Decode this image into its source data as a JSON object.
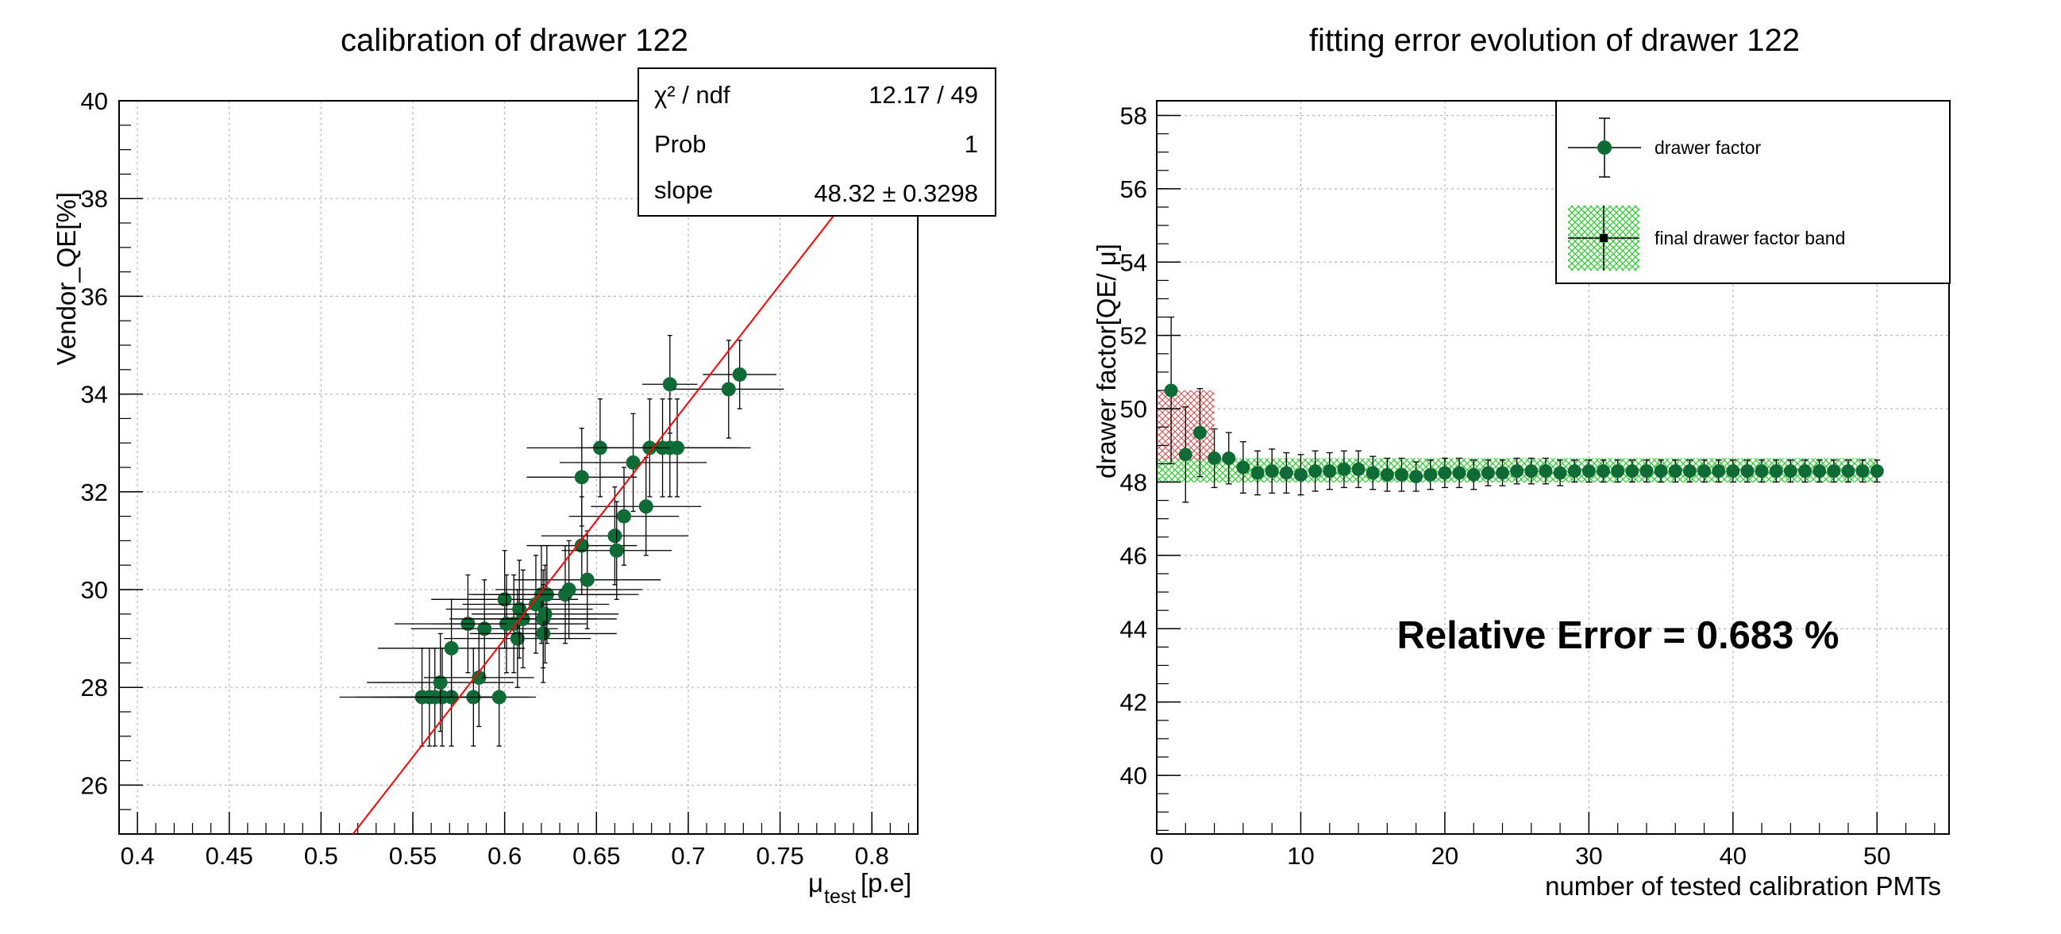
{
  "left": {
    "title": "calibration of drawer 122",
    "ylabel": "Vendor_QE[%]",
    "xlabel_mu": "μ",
    "xlabel_sub": "test",
    "xlabel_unit": "[p.e]",
    "stats": {
      "chi2_label": "χ² / ndf",
      "chi2_value": "12.17 / 49",
      "prob_label": "Prob",
      "prob_value": "1",
      "slope_label": "slope",
      "slope_value": "48.32 ± 0.3298"
    }
  },
  "right": {
    "title": "fitting error evolution of drawer 122",
    "ylabel": "drawer factor[QE/ μ]",
    "xlabel": "number of tested calibration PMTs",
    "legend": [
      "drawer factor",
      "final drawer factor band"
    ],
    "annotation": "Relative Error = 0.683 %"
  },
  "colors": {
    "marker": "#0f6b35",
    "fit_line": "#ff0000",
    "band_final": "#33cc33",
    "band_early": "#cc3333"
  },
  "chart_data": [
    {
      "type": "scatter",
      "title": "calibration of drawer 122",
      "xlabel": "μtest[p.e]",
      "ylabel": "Vendor_QE[%]",
      "xlim": [
        0.39,
        0.825
      ],
      "ylim": [
        25,
        40
      ],
      "xticks": [
        "0.4",
        "0.45",
        "0.5",
        "0.55",
        "0.6",
        "0.65",
        "0.7",
        "0.75",
        "0.8"
      ],
      "yticks": [
        "26",
        "28",
        "30",
        "32",
        "34",
        "36",
        "38",
        "40"
      ],
      "grid": true,
      "fit": {
        "function": "linear through origin",
        "slope": 48.32,
        "slope_error": 0.3298,
        "chi2": 12.17,
        "ndf": 49,
        "prob": 1
      },
      "points": [
        {
          "x": 0.555,
          "y": 27.8,
          "xerr": 0.045,
          "yerr": 1.0
        },
        {
          "x": 0.559,
          "y": 27.8,
          "xerr": 0.04,
          "yerr": 1.0
        },
        {
          "x": 0.562,
          "y": 27.8,
          "xerr": 0.035,
          "yerr": 1.0
        },
        {
          "x": 0.566,
          "y": 27.8,
          "xerr": 0.03,
          "yerr": 1.0
        },
        {
          "x": 0.571,
          "y": 27.8,
          "xerr": 0.03,
          "yerr": 1.0
        },
        {
          "x": 0.565,
          "y": 28.1,
          "xerr": 0.04,
          "yerr": 1.0
        },
        {
          "x": 0.571,
          "y": 28.8,
          "xerr": 0.04,
          "yerr": 1.0
        },
        {
          "x": 0.583,
          "y": 27.8,
          "xerr": 0.03,
          "yerr": 1.0
        },
        {
          "x": 0.586,
          "y": 28.2,
          "xerr": 0.03,
          "yerr": 1.0
        },
        {
          "x": 0.597,
          "y": 27.8,
          "xerr": 0.02,
          "yerr": 1.0
        },
        {
          "x": 0.58,
          "y": 29.3,
          "xerr": 0.04,
          "yerr": 1.0
        },
        {
          "x": 0.589,
          "y": 29.2,
          "xerr": 0.04,
          "yerr": 1.0
        },
        {
          "x": 0.6,
          "y": 29.8,
          "xerr": 0.04,
          "yerr": 1.0
        },
        {
          "x": 0.601,
          "y": 29.3,
          "xerr": 0.04,
          "yerr": 1.0
        },
        {
          "x": 0.605,
          "y": 29.3,
          "xerr": 0.04,
          "yerr": 1.0
        },
        {
          "x": 0.607,
          "y": 29.0,
          "xerr": 0.04,
          "yerr": 1.0
        },
        {
          "x": 0.608,
          "y": 29.6,
          "xerr": 0.04,
          "yerr": 1.0
        },
        {
          "x": 0.61,
          "y": 29.4,
          "xerr": 0.04,
          "yerr": 1.0
        },
        {
          "x": 0.617,
          "y": 29.7,
          "xerr": 0.04,
          "yerr": 1.0
        },
        {
          "x": 0.62,
          "y": 29.9,
          "xerr": 0.04,
          "yerr": 1.0
        },
        {
          "x": 0.621,
          "y": 29.4,
          "xerr": 0.04,
          "yerr": 1.0
        },
        {
          "x": 0.621,
          "y": 29.1,
          "xerr": 0.04,
          "yerr": 1.0
        },
        {
          "x": 0.622,
          "y": 29.5,
          "xerr": 0.04,
          "yerr": 1.0
        },
        {
          "x": 0.623,
          "y": 29.9,
          "xerr": 0.04,
          "yerr": 1.0
        },
        {
          "x": 0.633,
          "y": 29.9,
          "xerr": 0.04,
          "yerr": 1.0
        },
        {
          "x": 0.635,
          "y": 30.0,
          "xerr": 0.04,
          "yerr": 1.0
        },
        {
          "x": 0.642,
          "y": 30.9,
          "xerr": 0.03,
          "yerr": 1.0
        },
        {
          "x": 0.645,
          "y": 30.2,
          "xerr": 0.04,
          "yerr": 1.0
        },
        {
          "x": 0.642,
          "y": 32.3,
          "xerr": 0.03,
          "yerr": 1.0
        },
        {
          "x": 0.652,
          "y": 32.9,
          "xerr": 0.04,
          "yerr": 1.0
        },
        {
          "x": 0.66,
          "y": 31.1,
          "xerr": 0.04,
          "yerr": 1.0
        },
        {
          "x": 0.661,
          "y": 30.8,
          "xerr": 0.03,
          "yerr": 1.0
        },
        {
          "x": 0.665,
          "y": 31.5,
          "xerr": 0.03,
          "yerr": 1.0
        },
        {
          "x": 0.67,
          "y": 32.6,
          "xerr": 0.04,
          "yerr": 1.0
        },
        {
          "x": 0.677,
          "y": 31.7,
          "xerr": 0.03,
          "yerr": 1.0
        },
        {
          "x": 0.679,
          "y": 32.9,
          "xerr": 0.04,
          "yerr": 1.0
        },
        {
          "x": 0.686,
          "y": 32.9,
          "xerr": 0.04,
          "yerr": 1.0
        },
        {
          "x": 0.69,
          "y": 32.9,
          "xerr": 0.04,
          "yerr": 1.0
        },
        {
          "x": 0.694,
          "y": 32.9,
          "xerr": 0.04,
          "yerr": 1.0
        },
        {
          "x": 0.69,
          "y": 34.2,
          "xerr": 0.015,
          "yerr": 1.0
        },
        {
          "x": 0.722,
          "y": 34.1,
          "xerr": 0.03,
          "yerr": 1.0
        },
        {
          "x": 0.728,
          "y": 34.4,
          "xerr": 0.02,
          "yerr": 0.7
        }
      ]
    },
    {
      "type": "scatter",
      "title": "fitting error evolution of drawer 122",
      "xlabel": "number of tested calibration PMTs",
      "ylabel": "drawer factor[QE/ μ]",
      "xlim": [
        0,
        55
      ],
      "ylim": [
        38.4,
        58.4
      ],
      "xticks": [
        "0",
        "10",
        "20",
        "30",
        "40",
        "50"
      ],
      "yticks": [
        "40",
        "42",
        "44",
        "46",
        "48",
        "50",
        "52",
        "54",
        "56",
        "58"
      ],
      "grid": true,
      "legend_position": "top-right",
      "x": [
        1,
        2,
        3,
        4,
        5,
        6,
        7,
        8,
        9,
        10,
        11,
        12,
        13,
        14,
        15,
        16,
        17,
        18,
        19,
        20,
        21,
        22,
        23,
        24,
        25,
        26,
        27,
        28,
        29,
        30,
        31,
        32,
        33,
        34,
        35,
        36,
        37,
        38,
        39,
        40,
        41,
        42,
        43,
        44,
        45,
        46,
        47,
        48,
        49,
        50
      ],
      "values": [
        50.5,
        48.75,
        49.35,
        48.65,
        48.65,
        48.4,
        48.25,
        48.3,
        48.25,
        48.2,
        48.3,
        48.3,
        48.35,
        48.35,
        48.25,
        48.2,
        48.2,
        48.15,
        48.2,
        48.25,
        48.25,
        48.2,
        48.25,
        48.25,
        48.3,
        48.3,
        48.3,
        48.25,
        48.3,
        48.3,
        48.3,
        48.3,
        48.3,
        48.3,
        48.3,
        48.3,
        48.3,
        48.3,
        48.3,
        48.3,
        48.3,
        48.3,
        48.3,
        48.3,
        48.3,
        48.3,
        48.3,
        48.3,
        48.3,
        48.3
      ],
      "errors": [
        2.0,
        1.3,
        1.2,
        0.8,
        0.7,
        0.7,
        0.6,
        0.6,
        0.55,
        0.55,
        0.55,
        0.5,
        0.5,
        0.5,
        0.45,
        0.45,
        0.45,
        0.4,
        0.4,
        0.4,
        0.4,
        0.4,
        0.35,
        0.35,
        0.35,
        0.35,
        0.35,
        0.35,
        0.3,
        0.3,
        0.3,
        0.3,
        0.3,
        0.3,
        0.3,
        0.3,
        0.3,
        0.3,
        0.3,
        0.3,
        0.3,
        0.3,
        0.3,
        0.3,
        0.3,
        0.3,
        0.3,
        0.3,
        0.3,
        0.3
      ],
      "final_band": {
        "center": 48.32,
        "low": 47.99,
        "high": 48.65
      },
      "early_band": {
        "x_range": [
          0,
          4
        ],
        "low": 48.6,
        "high": 50.5
      }
    }
  ]
}
